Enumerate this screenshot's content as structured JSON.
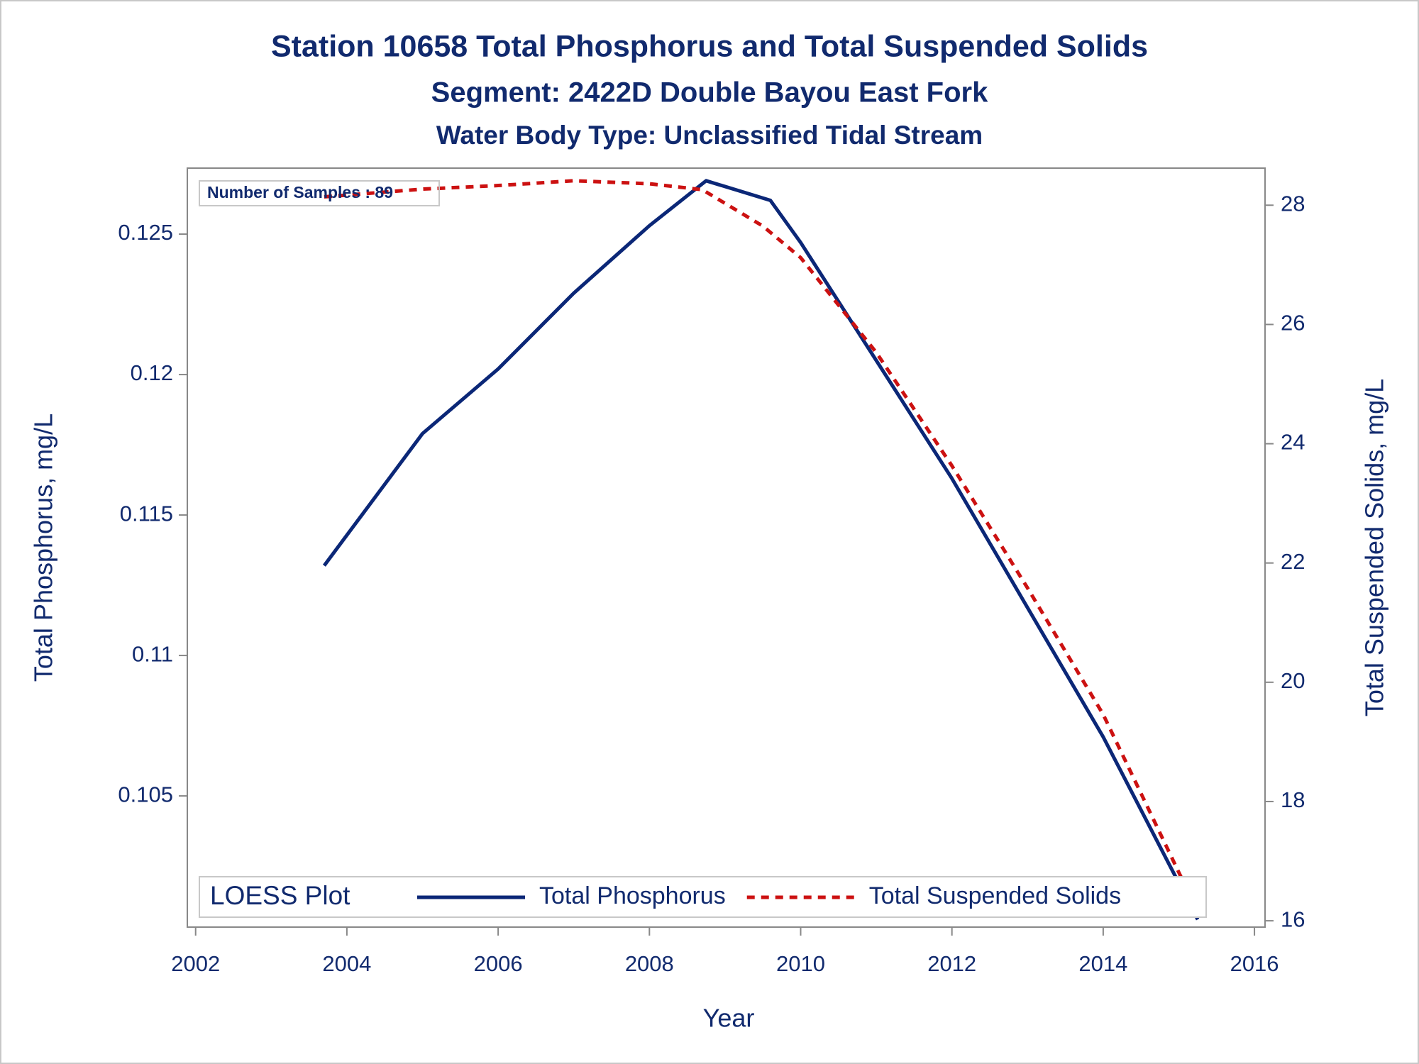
{
  "chart_data": {
    "type": "line",
    "title": "Station 10658  Total Phosphorus and Total Suspended Solids",
    "subtitle": "Segment: 2422D  Double Bayou East Fork",
    "subtitle2": "Water Body Type: Unclassified Tidal Stream",
    "annotation": "Number of Samples : 89",
    "x_label": "Year",
    "y_label": "Total Phosphorus, mg/L",
    "y2_label": "Total Suspended Solids, mg/L",
    "legend_title": "LOESS Plot",
    "legend": "bottom",
    "xlim": [
      2001.89,
      2016.14
    ],
    "xticks": [
      2002,
      2004,
      2006,
      2008,
      2010,
      2012,
      2014,
      2016
    ],
    "ylim": [
      0.10033,
      0.12735
    ],
    "yticks": [
      0.105,
      0.11,
      0.115,
      0.12,
      0.125
    ],
    "y2lim": [
      15.894,
      28.622
    ],
    "y2ticks": [
      16,
      18,
      20,
      22,
      24,
      26,
      28
    ],
    "series": [
      {
        "name": "Total Phosphorus",
        "color": "#0b2777",
        "dash": false,
        "axis": "y",
        "x": [
          2003.7,
          2005,
          2006,
          2007,
          2008,
          2008.75,
          2009.6,
          2010,
          2011,
          2012,
          2013,
          2014,
          2015.25
        ],
        "values": [
          0.1132,
          0.1179,
          0.1202,
          0.1229,
          0.1253,
          0.1269,
          0.1262,
          0.1247,
          0.1205,
          0.1163,
          0.1117,
          0.1071,
          0.1006
        ]
      },
      {
        "name": "Total Suspended Solids",
        "color": "#cc1111",
        "dash": true,
        "axis": "y2",
        "x": [
          2003.7,
          2005,
          2006,
          2007,
          2008,
          2008.7,
          2009.5,
          2010,
          2011,
          2012,
          2013,
          2014,
          2015.25
        ],
        "values": [
          28.14,
          28.27,
          28.33,
          28.41,
          28.36,
          28.26,
          27.65,
          27.12,
          25.53,
          23.63,
          21.58,
          19.46,
          16.15
        ]
      }
    ]
  }
}
